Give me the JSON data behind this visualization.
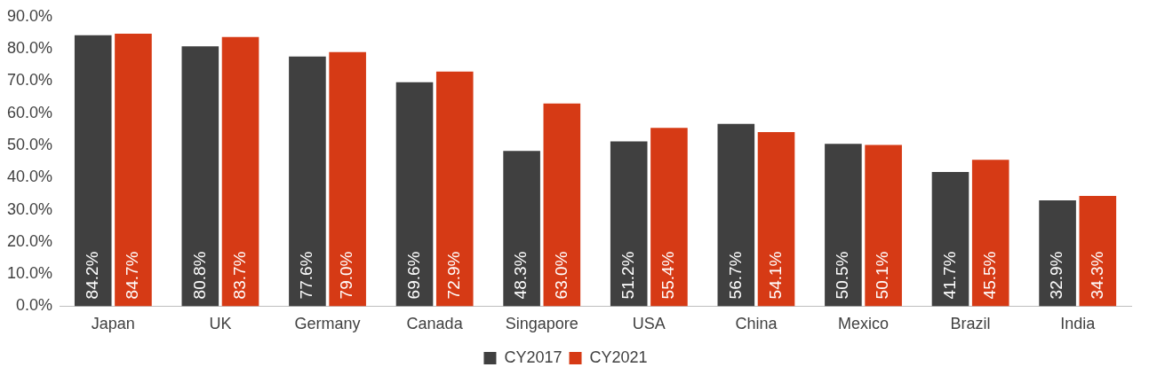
{
  "chart_data": {
    "type": "bar",
    "categories": [
      "Japan",
      "UK",
      "Germany",
      "Canada",
      "Singapore",
      "USA",
      "China",
      "Mexico",
      "Brazil",
      "India"
    ],
    "series": [
      {
        "name": "CY2017",
        "color": "#404040",
        "values": [
          84.2,
          80.8,
          77.6,
          69.6,
          48.3,
          51.2,
          56.7,
          50.5,
          41.7,
          32.9
        ],
        "value_labels": [
          "84.2%",
          "80.8%",
          "77.6%",
          "69.6%",
          "48.3%",
          "51.2%",
          "56.7%",
          "50.5%",
          "41.7%",
          "32.9%"
        ]
      },
      {
        "name": "CY2021",
        "color": "#d63a15",
        "values": [
          84.7,
          83.7,
          79.0,
          72.9,
          63.0,
          55.4,
          54.1,
          50.1,
          45.5,
          34.3
        ],
        "value_labels": [
          "84.7%",
          "83.7%",
          "79.0%",
          "72.9%",
          "63.0%",
          "55.4%",
          "54.1%",
          "50.1%",
          "45.5%",
          "34.3%"
        ]
      }
    ],
    "ylim": [
      0,
      90
    ],
    "yticks": [
      {
        "value": 0,
        "label": "0.0%"
      },
      {
        "value": 10,
        "label": "10.0%"
      },
      {
        "value": 20,
        "label": "20.0%"
      },
      {
        "value": 30,
        "label": "30.0%"
      },
      {
        "value": 40,
        "label": "40.0%"
      },
      {
        "value": 50,
        "label": "50.0%"
      },
      {
        "value": 60,
        "label": "60.0%"
      },
      {
        "value": 70,
        "label": "70.0%"
      },
      {
        "value": 80,
        "label": "80.0%"
      },
      {
        "value": 90,
        "label": "90.0%"
      }
    ],
    "grid": false,
    "legend": "bottom"
  }
}
